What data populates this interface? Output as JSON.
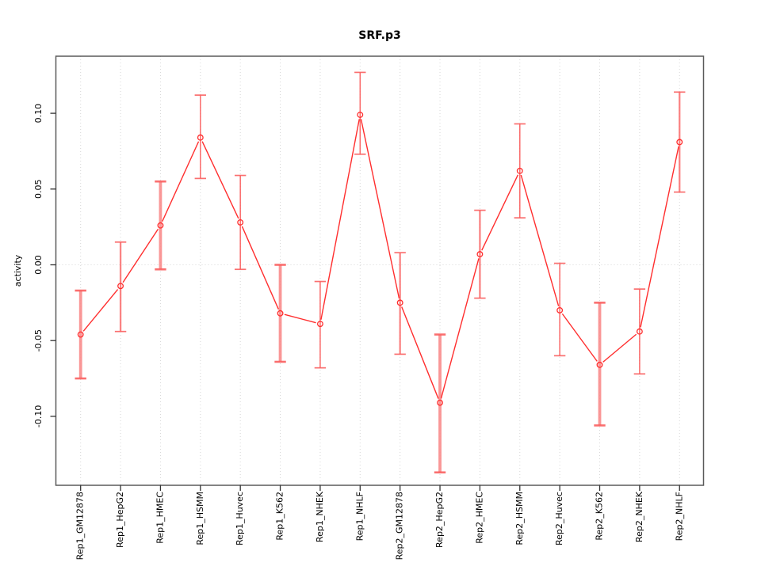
{
  "chart_data": {
    "type": "line",
    "title": "SRF.p3",
    "xlabel": "",
    "ylabel": "activity",
    "legend": "none",
    "categories": [
      "Rep1_GM12878",
      "Rep1_HepG2",
      "Rep1_HMEC",
      "Rep1_HSMM",
      "Rep1_Huvec",
      "Rep1_K562",
      "Rep1_NHEK",
      "Rep1_NHLF",
      "Rep2_GM12878",
      "Rep2_HepG2",
      "Rep2_HMEC",
      "Rep2_HSMM",
      "Rep2_Huvec",
      "Rep2_K562",
      "Rep2_NHEK",
      "Rep2_NHLF"
    ],
    "series": [
      {
        "name": "activity",
        "marker": "open-circle",
        "values": [
          -0.046,
          -0.014,
          0.026,
          0.084,
          0.028,
          -0.032,
          -0.039,
          0.099,
          -0.025,
          -0.091,
          0.007,
          0.062,
          -0.03,
          -0.066,
          -0.044,
          0.081
        ],
        "err_high": [
          -0.017,
          0.015,
          0.055,
          0.112,
          0.059,
          0.0,
          -0.011,
          0.127,
          0.008,
          -0.046,
          0.036,
          0.093,
          0.001,
          -0.025,
          -0.016,
          0.114
        ],
        "err_low": [
          -0.075,
          -0.044,
          -0.003,
          0.057,
          -0.003,
          -0.064,
          -0.068,
          0.073,
          -0.059,
          -0.137,
          -0.022,
          0.031,
          -0.06,
          -0.106,
          -0.072,
          0.048
        ]
      }
    ],
    "error_bar_weights": [
      3,
      2,
      3,
      1,
      1,
      3,
      1,
      1,
      2,
      3,
      2,
      1,
      1,
      3,
      1,
      2
    ],
    "y_ticks": [
      0.1,
      0.05,
      0.0,
      -0.05,
      -0.1
    ],
    "y_tick_labels": [
      "0.10",
      "0.05",
      "0.00",
      "-0.05",
      "-0.10"
    ],
    "ylim": [
      -0.146,
      0.138
    ],
    "grid": {
      "vertical": "per-category",
      "horizontal": "at-zero-only",
      "line_style": "dotted"
    },
    "colors": {
      "series": "#ff2e2e",
      "error_bar_light": "#fa8c8c",
      "gridline": "#d7d7d7",
      "box": "#5a5a5a",
      "tick": "#333333",
      "text": "#000000",
      "background": "#ffffff"
    }
  }
}
